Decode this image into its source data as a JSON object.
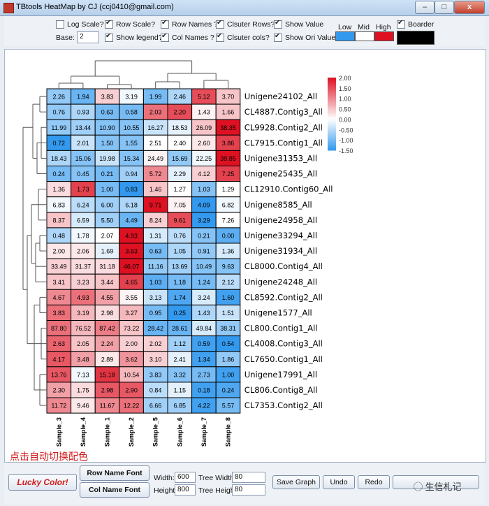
{
  "window": {
    "title": "TBtools HeatMap by CJ (ccj0410@gmail.com)",
    "minimize": "–",
    "maximize": "□",
    "close": "x"
  },
  "toolbar": {
    "log_scale": {
      "label": "Log Scale?",
      "checked": false
    },
    "row_scale": {
      "label": "Row Scale?",
      "checked": true
    },
    "row_names": {
      "label": "Row Names ?",
      "checked": true
    },
    "cluster_rows": {
      "label": "Clsuter Rows?",
      "checked": true
    },
    "show_value": {
      "label": "Show Value",
      "checked": true
    },
    "show_legend": {
      "label": "Show legend?",
      "checked": true
    },
    "col_names": {
      "label": "Col Names ?",
      "checked": true
    },
    "cluster_cols": {
      "label": "Clsuter cols?",
      "checked": true
    },
    "show_ori_value": {
      "label": "Show Ori Value?",
      "checked": true
    },
    "border": {
      "label": "Boarder",
      "checked": true
    },
    "base_label": "Base:",
    "base_value": "2",
    "low_label": "Low",
    "mid_label": "Mid",
    "high_label": "High",
    "low_color": "#3399ee",
    "mid_color": "#ffffff",
    "high_color": "#dd1122",
    "border_color": "#000000"
  },
  "heatmap": {
    "columns": [
      "Sample_3",
      "Sample_4",
      "Sample_1",
      "Sample_2",
      "Sample_5",
      "Sample_6",
      "Sample_7",
      "Sample_8"
    ],
    "rows": [
      {
        "name": "Unigene24102_All",
        "values": [
          "2.26",
          "1.94",
          "3.83",
          "3.19",
          "1.99",
          "2.46",
          "5.12",
          "3.70"
        ],
        "z": [
          -0.8,
          -1.1,
          0.4,
          -0.1,
          -1.0,
          -0.6,
          1.5,
          0.5
        ]
      },
      {
        "name": "CL4887.Contig3_All",
        "values": [
          "0.76",
          "0.93",
          "0.63",
          "0.58",
          "2.03",
          "2.20",
          "1.43",
          "1.66"
        ],
        "z": [
          -0.8,
          -0.6,
          -1.0,
          -1.0,
          1.2,
          1.5,
          0.1,
          0.5
        ]
      },
      {
        "name": "CL9928.Contig2_All",
        "values": [
          "11.99",
          "13.44",
          "10.90",
          "10.55",
          "16.27",
          "18.53",
          "26.09",
          "38.35"
        ],
        "z": [
          -0.8,
          -0.7,
          -0.9,
          -0.9,
          -0.4,
          -0.2,
          0.5,
          2.0
        ]
      },
      {
        "name": "CL7915.Contig1_All",
        "values": [
          "0.72",
          "2.01",
          "1.50",
          "1.55",
          "2.51",
          "2.40",
          "2.60",
          "3.86"
        ],
        "z": [
          -1.7,
          -0.4,
          -0.9,
          -0.9,
          0.0,
          0.0,
          0.2,
          1.6
        ]
      },
      {
        "name": "Unigene31353_All",
        "values": [
          "18.43",
          "15.06",
          "19.98",
          "15.34",
          "24.49",
          "15.69",
          "22.25",
          "39.85"
        ],
        "z": [
          -0.6,
          -0.9,
          -0.4,
          -0.9,
          0.1,
          -0.8,
          -0.1,
          2.2
        ]
      },
      {
        "name": "Unigene25435_All",
        "values": [
          "0.24",
          "0.45",
          "0.21",
          "0.94",
          "5.72",
          "2.29",
          "4.12",
          "7.25"
        ],
        "z": [
          -1.0,
          -0.9,
          -1.0,
          -0.7,
          1.0,
          -0.2,
          0.4,
          1.6
        ]
      },
      {
        "name": "CL12910.Contig60_All",
        "values": [
          "1.36",
          "1.73",
          "1.00",
          "0.83",
          "1.46",
          "1.27",
          "1.03",
          "1.29"
        ],
        "z": [
          0.3,
          1.6,
          -1.0,
          -1.5,
          0.5,
          0.0,
          -0.9,
          0.0
        ]
      },
      {
        "name": "Unigene8585_All",
        "values": [
          "6.83",
          "6.24",
          "6.00",
          "6.18",
          "9.71",
          "7.05",
          "4.09",
          "6.82"
        ],
        "z": [
          -0.1,
          -0.5,
          -0.7,
          -0.6,
          2.0,
          0.1,
          -1.6,
          -0.1
        ]
      },
      {
        "name": "Unigene24958_All",
        "values": [
          "8.37",
          "6.59",
          "5.50",
          "4.49",
          "8.24",
          "9.61",
          "3.29",
          "7.26"
        ],
        "z": [
          0.5,
          -0.3,
          -0.7,
          -1.1,
          0.4,
          1.5,
          -1.6,
          0.0
        ]
      },
      {
        "name": "Unigene33294_All",
        "values": [
          "0.48",
          "1.78",
          "2.07",
          "4.93",
          "1.31",
          "0.76",
          "0.21",
          "0.00"
        ],
        "z": [
          -0.6,
          -0.1,
          0.0,
          2.2,
          -0.3,
          -0.5,
          -0.9,
          -1.2
        ]
      },
      {
        "name": "Unigene31934_All",
        "values": [
          "2.00",
          "2.06",
          "1.69",
          "3.63",
          "0.63",
          "1.05",
          "0.91",
          "1.36"
        ],
        "z": [
          0.2,
          0.2,
          -0.2,
          2.1,
          -1.0,
          -0.6,
          -0.8,
          -0.3
        ]
      },
      {
        "name": "CL8000.Contig4_All",
        "values": [
          "33.49",
          "31.37",
          "31.18",
          "46.07",
          "11.16",
          "13.69",
          "10.49",
          "9.63"
        ],
        "z": [
          0.4,
          0.3,
          0.3,
          2.0,
          -0.8,
          -0.7,
          -0.9,
          -0.9
        ]
      },
      {
        "name": "Unigene24248_All",
        "values": [
          "3.41",
          "3.23",
          "3.44",
          "4.65",
          "1.03",
          "1.18",
          "1.24",
          "2.12"
        ],
        "z": [
          0.5,
          0.4,
          0.5,
          1.6,
          -1.2,
          -1.0,
          -1.0,
          -0.5
        ]
      },
      {
        "name": "CL8592.Contig2_All",
        "values": [
          "4.67",
          "4.93",
          "4.55",
          "3.55",
          "3.13",
          "1.74",
          "3.24",
          "1.60"
        ],
        "z": [
          1.0,
          1.2,
          0.8,
          0.1,
          -0.4,
          -1.3,
          -0.3,
          -1.4
        ]
      },
      {
        "name": "Unigene1577_All",
        "values": [
          "3.83",
          "3.19",
          "2.98",
          "3.27",
          "0.95",
          "0.25",
          "1.43",
          "1.51"
        ],
        "z": [
          1.2,
          0.6,
          0.3,
          0.6,
          -1.0,
          -1.6,
          -0.6,
          -0.4
        ]
      },
      {
        "name": "CL800.Contig1_All",
        "values": [
          "87.80",
          "76.52",
          "87.42",
          "73.22",
          "28.42",
          "28.61",
          "49.84",
          "38.31"
        ],
        "z": [
          1.2,
          0.6,
          1.1,
          0.5,
          -1.1,
          -1.1,
          -0.3,
          -0.8
        ]
      },
      {
        "name": "CL4008.Contig3_All",
        "values": [
          "2.63",
          "2.05",
          "2.24",
          "2.00",
          "2.02",
          "1.12",
          "0.59",
          "0.54"
        ],
        "z": [
          1.3,
          0.5,
          0.8,
          0.4,
          0.4,
          -0.7,
          -1.4,
          -1.5
        ]
      },
      {
        "name": "CL7650.Contig1_All",
        "values": [
          "4.17",
          "3.48",
          "2.89",
          "3.62",
          "3.10",
          "2.41",
          "1.34",
          "1.86"
        ],
        "z": [
          1.4,
          0.8,
          0.2,
          0.9,
          0.4,
          -0.2,
          -1.4,
          -0.8
        ]
      },
      {
        "name": "Unigene17991_All",
        "values": [
          "13.76",
          "7.13",
          "15.18",
          "10.54",
          "3.83",
          "3.32",
          "2.73",
          "1.00"
        ],
        "z": [
          1.4,
          -0.1,
          1.7,
          0.6,
          -0.8,
          -0.9,
          -1.0,
          -1.4
        ]
      },
      {
        "name": "CL806.Contig8_All",
        "values": [
          "2.30",
          "1.75",
          "2.98",
          "2.90",
          "0.84",
          "1.15",
          "0.18",
          "0.24"
        ],
        "z": [
          0.8,
          0.3,
          1.4,
          1.4,
          -0.5,
          -0.2,
          -1.4,
          -1.3
        ]
      },
      {
        "name": "CL7353.Contig2_All",
        "values": [
          "11.72",
          "9.46",
          "11.67",
          "12.22",
          "6.66",
          "6.85",
          "4.22",
          "5.57"
        ],
        "z": [
          1.0,
          0.2,
          1.0,
          1.2,
          -0.7,
          -0.7,
          -1.4,
          -1.0
        ]
      }
    ],
    "legend": {
      "ticks": [
        "2.00",
        "1.50",
        "1.00",
        "0.50",
        "0.00",
        "-0.50",
        "-1.00",
        "-1.50"
      ],
      "min": -1.5,
      "max": 2.0
    }
  },
  "annotation": {
    "text": "点击自动切换配色",
    "arrow": "↓"
  },
  "bottom": {
    "lucky_color": "Lucky Color!",
    "row_name_font": "Row Name Font",
    "col_name_font": "Col Name Font",
    "width_label": "Width:",
    "width_value": "600",
    "height_label": "Height:",
    "height_value": "800",
    "tree_width_label": "Tree Width:",
    "tree_width_value": "80",
    "tree_height_label": "Tree Height:",
    "tree_height_value": "80",
    "save_graph": "Save Graph",
    "undo": "Undo",
    "redo": "Redo",
    "watermark": "生信札记"
  }
}
